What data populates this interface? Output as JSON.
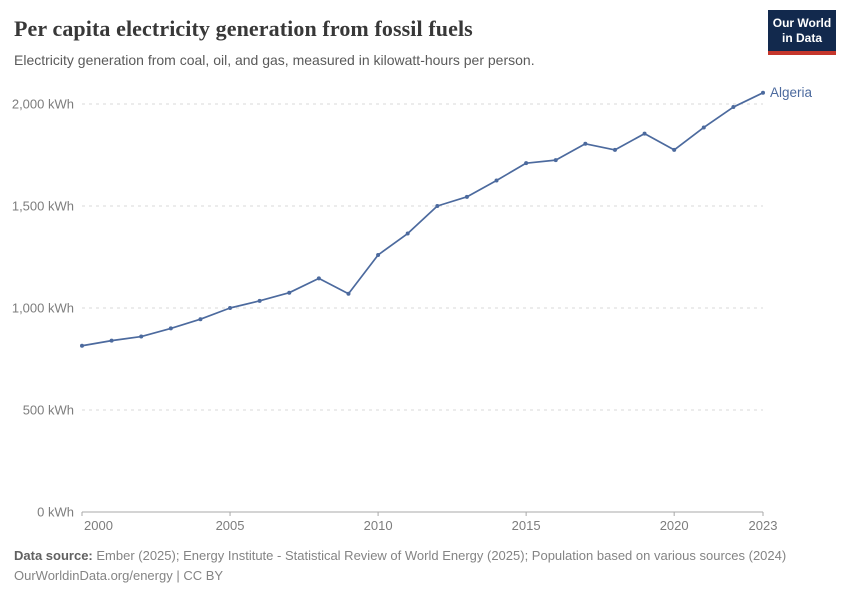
{
  "logo": {
    "line1": "Our World",
    "line2": "in Data"
  },
  "colors": {
    "series": "#4c6a9e",
    "grid": "#dadada",
    "axis": "#a8a8a8",
    "tick_text": "#7d7d7d",
    "logo_bg": "#12294d",
    "logo_red": "#c5362c"
  },
  "chart_data": {
    "type": "line",
    "title": "Per capita electricity generation from fossil fuels",
    "subtitle": "Electricity generation from coal, oil, and gas, measured in kilowatt-hours per person.",
    "xlabel": "",
    "ylabel": "kWh per person",
    "grid": "dashed horizontal",
    "legend_position": "end-of-line label",
    "xlim": [
      2000,
      2023
    ],
    "ylim": [
      0,
      2000
    ],
    "x": [
      2000,
      2001,
      2002,
      2003,
      2004,
      2005,
      2006,
      2007,
      2008,
      2009,
      2010,
      2011,
      2012,
      2013,
      2014,
      2015,
      2016,
      2017,
      2018,
      2019,
      2020,
      2021,
      2022,
      2023
    ],
    "series": [
      {
        "name": "Algeria",
        "values": [
          815,
          840,
          860,
          900,
          945,
          1000,
          1035,
          1075,
          1145,
          1070,
          1260,
          1365,
          1500,
          1545,
          1625,
          1710,
          1725,
          1805,
          1775,
          1855,
          1775,
          1885,
          1985,
          2055
        ]
      }
    ],
    "y_ticks": [
      {
        "value": 0,
        "label": "0 kWh"
      },
      {
        "value": 500,
        "label": "500 kWh"
      },
      {
        "value": 1000,
        "label": "1,000 kWh"
      },
      {
        "value": 1500,
        "label": "1,500 kWh"
      },
      {
        "value": 2000,
        "label": "2,000 kWh"
      }
    ],
    "x_ticks": [
      {
        "value": 2000,
        "label": "2000"
      },
      {
        "value": 2005,
        "label": "2005"
      },
      {
        "value": 2010,
        "label": "2010"
      },
      {
        "value": 2015,
        "label": "2015"
      },
      {
        "value": 2020,
        "label": "2020"
      },
      {
        "value": 2023,
        "label": "2023"
      }
    ]
  },
  "footer": {
    "source_label": "Data source:",
    "source_text": " Ember (2025); Energy Institute - Statistical Review of World Energy (2025); Population based on various sources (2024)",
    "link": "OurWorldinData.org/energy",
    "license": " | CC BY"
  }
}
